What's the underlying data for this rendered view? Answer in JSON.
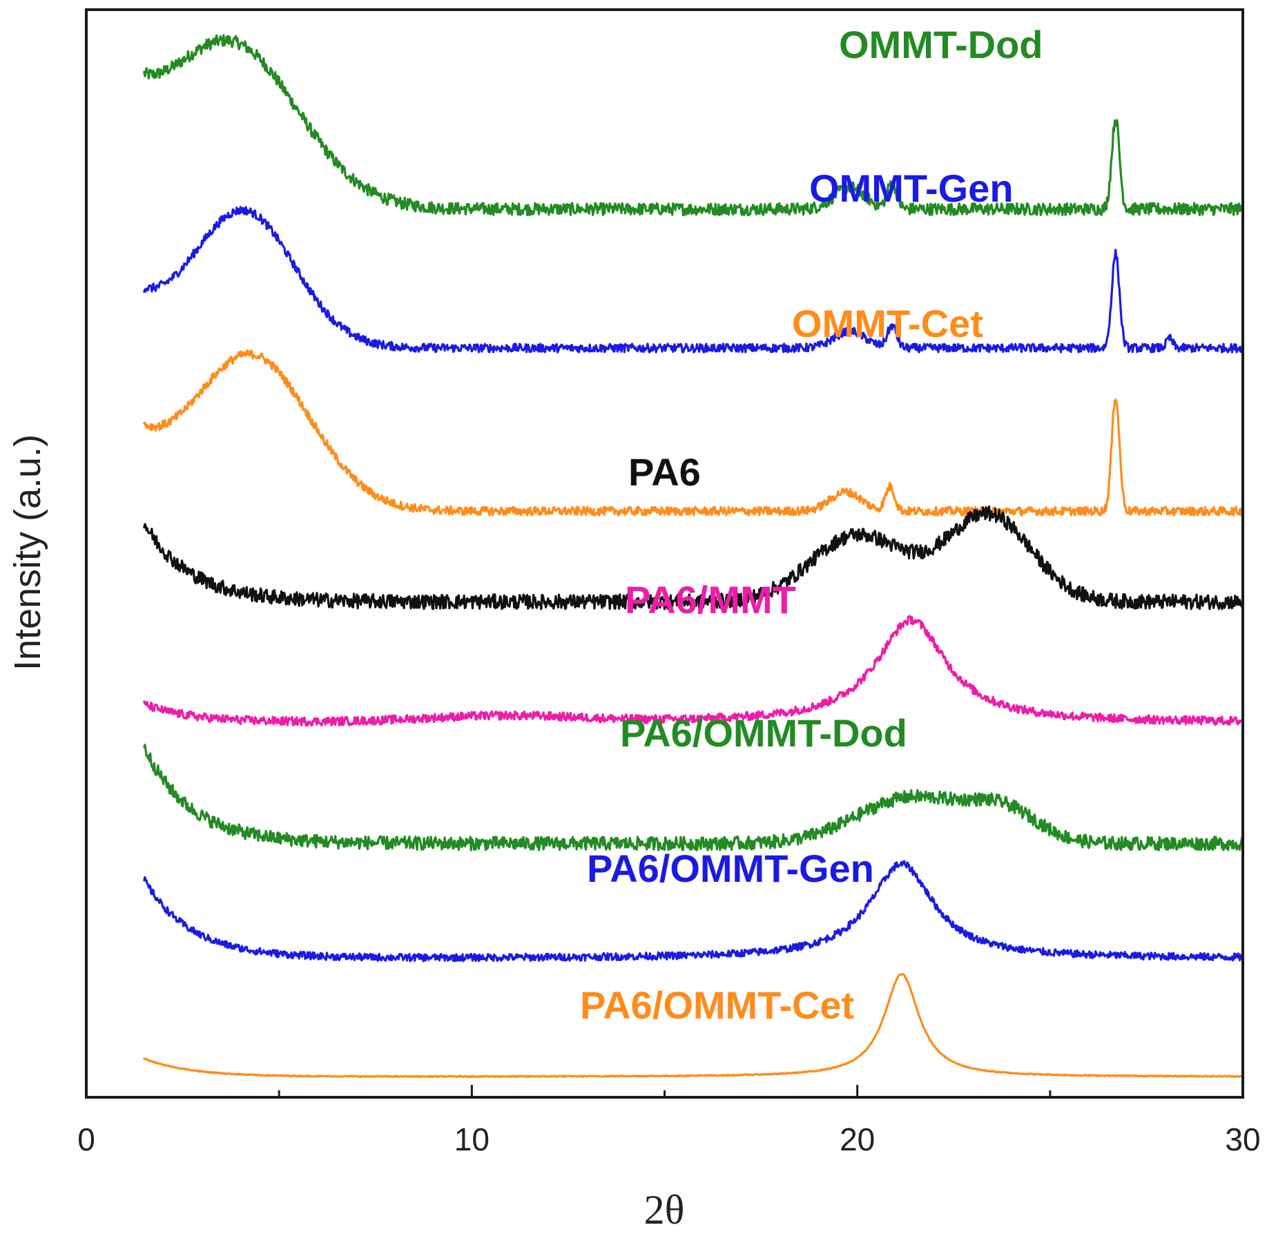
{
  "chart_data": {
    "type": "line",
    "title": "",
    "xlabel": "2θ",
    "ylabel": "Intensity (a.u.)",
    "xlim": [
      0,
      30
    ],
    "x_ticks": [
      0,
      10,
      20,
      30
    ],
    "x_tick_labels": [
      "0",
      "10",
      "20",
      "30"
    ],
    "x_minor_ticks": [
      5,
      15,
      25
    ],
    "y_ticks_shown": false,
    "grid": false,
    "legend": "inline labels above each trace",
    "series": [
      {
        "name": "OMMT-Dod",
        "color": "#228b22",
        "baseline": 7.2,
        "noise": 0.05,
        "start": 7.8,
        "peaks": [
          {
            "pos": 3.8,
            "height": 1.3,
            "width": 1.7,
            "shape": "gauss"
          },
          {
            "pos": 19.8,
            "height": 0.18,
            "width": 0.4,
            "shape": "gauss"
          },
          {
            "pos": 20.9,
            "height": 0.22,
            "width": 0.12,
            "shape": "gauss"
          },
          {
            "pos": 26.7,
            "height": 0.75,
            "width": 0.1,
            "shape": "gauss"
          }
        ]
      },
      {
        "name": "OMMT-Gen",
        "color": "#1a1ae6",
        "baseline": 6.05,
        "noise": 0.035,
        "start": 6.4,
        "peaks": [
          {
            "pos": 4.1,
            "height": 1.1,
            "width": 1.3,
            "shape": "gauss"
          },
          {
            "pos": 19.8,
            "height": 0.14,
            "width": 0.4,
            "shape": "gauss"
          },
          {
            "pos": 20.9,
            "height": 0.18,
            "width": 0.12,
            "shape": "gauss"
          },
          {
            "pos": 26.7,
            "height": 0.78,
            "width": 0.1,
            "shape": "gauss"
          },
          {
            "pos": 28.1,
            "height": 0.08,
            "width": 0.08,
            "shape": "gauss"
          }
        ]
      },
      {
        "name": "OMMT-Cet",
        "color": "#ff8c1a",
        "baseline": 4.7,
        "noise": 0.035,
        "start": 5.2,
        "peaks": [
          {
            "pos": 4.3,
            "height": 1.25,
            "width": 1.5,
            "shape": "gauss"
          },
          {
            "pos": 19.7,
            "height": 0.16,
            "width": 0.4,
            "shape": "gauss"
          },
          {
            "pos": 20.85,
            "height": 0.2,
            "width": 0.12,
            "shape": "gauss"
          },
          {
            "pos": 26.7,
            "height": 0.95,
            "width": 0.1,
            "shape": "gauss"
          }
        ]
      },
      {
        "name": "PA6",
        "color": "#111111",
        "baseline": 3.95,
        "noise": 0.06,
        "start": 4.6,
        "peaks": [
          {
            "pos": 20.0,
            "height": 0.55,
            "width": 1.2,
            "shape": "gauss"
          },
          {
            "pos": 23.4,
            "height": 0.72,
            "width": 1.1,
            "shape": "gauss"
          }
        ]
      },
      {
        "name": "PA6/MMT",
        "color": "#ee1ca8",
        "baseline": 2.95,
        "noise": 0.035,
        "start": 3.1,
        "peaks": [
          {
            "pos": 21.4,
            "height": 0.85,
            "width": 1.1,
            "shape": "lorentz"
          },
          {
            "pos": 10.8,
            "height": 0.05,
            "width": 2.0,
            "shape": "gauss"
          }
        ]
      },
      {
        "name": "PA6/OMMT-Dod",
        "color": "#228b22",
        "baseline": 1.95,
        "noise": 0.055,
        "start": 2.75,
        "peaks": [
          {
            "pos": 21.4,
            "height": 0.38,
            "width": 1.4,
            "shape": "gauss"
          },
          {
            "pos": 23.8,
            "height": 0.25,
            "width": 0.9,
            "shape": "gauss"
          }
        ]
      },
      {
        "name": "PA6/OMMT-Gen",
        "color": "#1a1ae6",
        "baseline": 1.0,
        "noise": 0.03,
        "start": 1.65,
        "peaks": [
          {
            "pos": 21.15,
            "height": 0.78,
            "width": 1.0,
            "shape": "lorentz"
          }
        ]
      },
      {
        "name": "PA6/OMMT-Cet",
        "color": "#ff8c1a",
        "baseline": 0.02,
        "noise": 0.004,
        "start": 0.17,
        "peaks": [
          {
            "pos": 21.15,
            "height": 0.85,
            "width": 0.55,
            "shape": "lorentz"
          }
        ]
      }
    ]
  }
}
